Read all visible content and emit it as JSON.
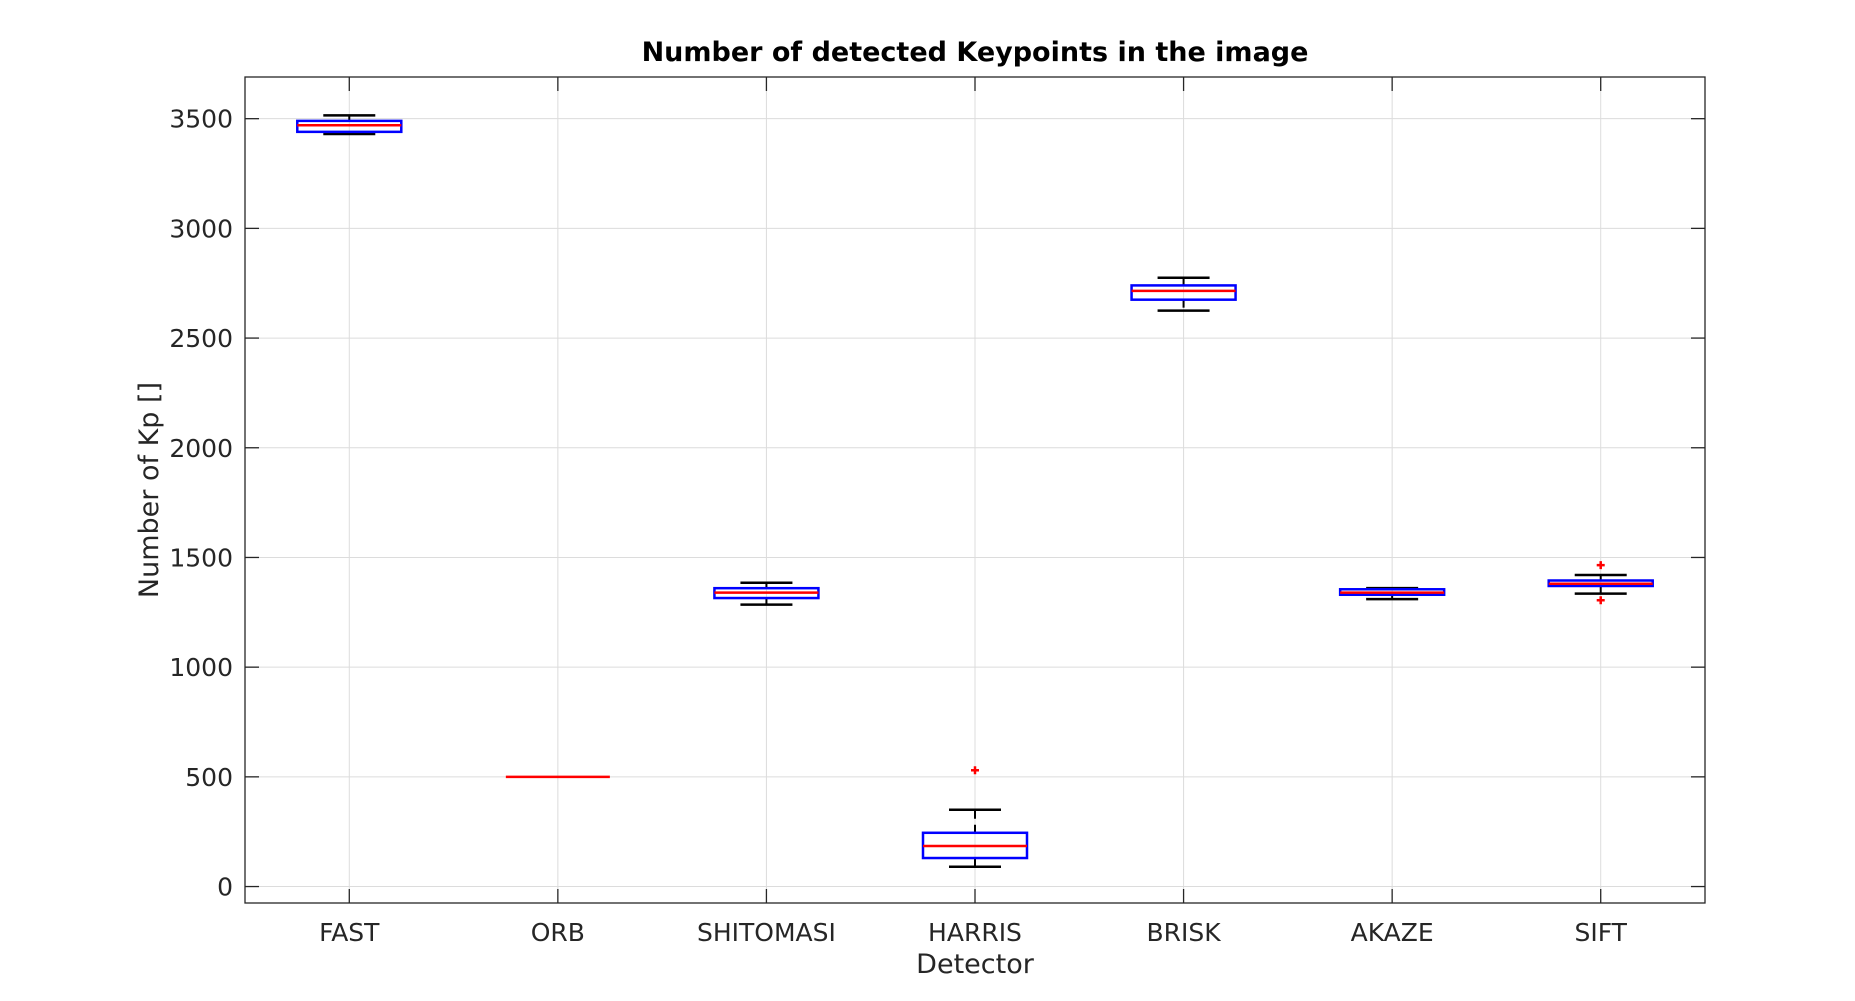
{
  "chart_data": {
    "type": "box",
    "title": "Number of detected Keypoints in the image",
    "xlabel": "Detector",
    "ylabel": "Number of Kp []",
    "ylim": [
      -75,
      3690
    ],
    "yticks": [
      0,
      500,
      1000,
      1500,
      2000,
      2500,
      3000,
      3500
    ],
    "grid": true,
    "colors": {
      "box": "#0000ff",
      "median": "#ff0000",
      "whisker": "#000000",
      "outlier": "#ff0000",
      "grid": "#dcdcdc",
      "axis": "#262626"
    },
    "categories": [
      "FAST",
      "ORB",
      "SHITOMASI",
      "HARRIS",
      "BRISK",
      "AKAZE",
      "SIFT"
    ],
    "boxes": [
      {
        "category": "FAST",
        "whisker_low": 3430,
        "q1": 3440,
        "median": 3470,
        "q3": 3490,
        "whisker_high": 3515,
        "outliers": []
      },
      {
        "category": "ORB",
        "whisker_low": 500,
        "q1": 500,
        "median": 500,
        "q3": 500,
        "whisker_high": 500,
        "outliers": []
      },
      {
        "category": "SHITOMASI",
        "whisker_low": 1285,
        "q1": 1315,
        "median": 1340,
        "q3": 1360,
        "whisker_high": 1385,
        "outliers": []
      },
      {
        "category": "HARRIS",
        "whisker_low": 90,
        "q1": 130,
        "median": 185,
        "q3": 245,
        "whisker_high": 350,
        "outliers": [
          530
        ]
      },
      {
        "category": "BRISK",
        "whisker_low": 2625,
        "q1": 2675,
        "median": 2715,
        "q3": 2740,
        "whisker_high": 2775,
        "outliers": []
      },
      {
        "category": "AKAZE",
        "whisker_low": 1310,
        "q1": 1330,
        "median": 1340,
        "q3": 1355,
        "whisker_high": 1360,
        "outliers": []
      },
      {
        "category": "SIFT",
        "whisker_low": 1335,
        "q1": 1370,
        "median": 1380,
        "q3": 1395,
        "whisker_high": 1420,
        "outliers": [
          1465,
          1305
        ]
      }
    ]
  }
}
